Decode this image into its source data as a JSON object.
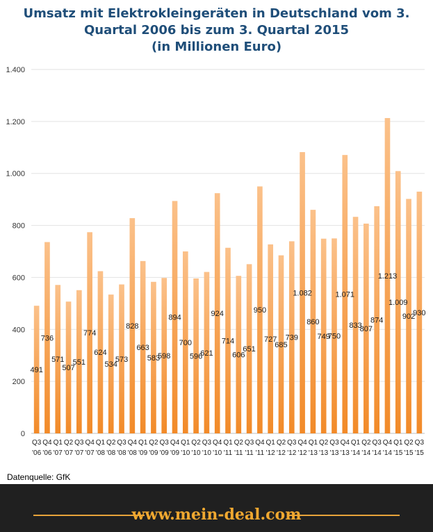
{
  "chart_data": {
    "type": "bar",
    "title_lines": [
      "Umsatz mit Elektrokleingeräten in Deutschland vom 3.",
      "Quartal 2006 bis zum 3. Quartal 2015",
      "(in Millionen Euro)"
    ],
    "categories": [
      [
        "Q3",
        "'06"
      ],
      [
        "Q4",
        "'06"
      ],
      [
        "Q1",
        "'07"
      ],
      [
        "Q2",
        "'07"
      ],
      [
        "Q3",
        "'07"
      ],
      [
        "Q4",
        "'07"
      ],
      [
        "Q1",
        "'08"
      ],
      [
        "Q2",
        "'08"
      ],
      [
        "Q3",
        "'08"
      ],
      [
        "Q4",
        "'08"
      ],
      [
        "Q1",
        "'09"
      ],
      [
        "Q2",
        "'09"
      ],
      [
        "Q3",
        "'09"
      ],
      [
        "Q4",
        "'09"
      ],
      [
        "Q1",
        "'10"
      ],
      [
        "Q2",
        "'10"
      ],
      [
        "Q3",
        "'10"
      ],
      [
        "Q4",
        "'10"
      ],
      [
        "Q1",
        "'11"
      ],
      [
        "Q2",
        "'11"
      ],
      [
        "Q3",
        "'11"
      ],
      [
        "Q4",
        "'11"
      ],
      [
        "Q1",
        "'12"
      ],
      [
        "Q2",
        "'12"
      ],
      [
        "Q3",
        "'12"
      ],
      [
        "Q4",
        "'12"
      ],
      [
        "Q1",
        "'13"
      ],
      [
        "Q2",
        "'13"
      ],
      [
        "Q3",
        "'13"
      ],
      [
        "Q4",
        "'13"
      ],
      [
        "Q1",
        "'14"
      ],
      [
        "Q2",
        "'14"
      ],
      [
        "Q3",
        "'14"
      ],
      [
        "Q4",
        "'14"
      ],
      [
        "Q1",
        "'15"
      ],
      [
        "Q2",
        "'15"
      ],
      [
        "Q3",
        "'15"
      ]
    ],
    "values": [
      491,
      736,
      571,
      507,
      551,
      774,
      624,
      534,
      573,
      828,
      663,
      583,
      598,
      894,
      700,
      596,
      621,
      924,
      714,
      606,
      651,
      950,
      727,
      685,
      739,
      1082,
      860,
      749,
      750,
      1071,
      833,
      807,
      874,
      1213,
      1009,
      902,
      930
    ],
    "value_labels": [
      "491",
      "736",
      "571",
      "507",
      "551",
      "774",
      "624",
      "534",
      "573",
      "828",
      "663",
      "583",
      "598",
      "894",
      "700",
      "596",
      "621",
      "924",
      "714",
      "606",
      "651",
      "950",
      "727",
      "685",
      "739",
      "1.082",
      "860",
      "749",
      "750",
      "1.071",
      "833",
      "807",
      "874",
      "1.213",
      "1.009",
      "902",
      "930"
    ],
    "y_ticks": [
      0,
      200,
      400,
      600,
      800,
      1000,
      1200,
      1400
    ],
    "y_tick_labels": [
      "0",
      "200",
      "400",
      "600",
      "800",
      "1.000",
      "1.200",
      "1.400"
    ],
    "ylim": [
      0,
      1400
    ],
    "xlabel": "",
    "ylabel": "",
    "bar_color_top": "#fbc18a",
    "bar_color_bottom": "#f28a28",
    "grid": true
  },
  "source": "Datenquelle: GfK",
  "footer": {
    "brand": "www.mein-deal.com"
  }
}
